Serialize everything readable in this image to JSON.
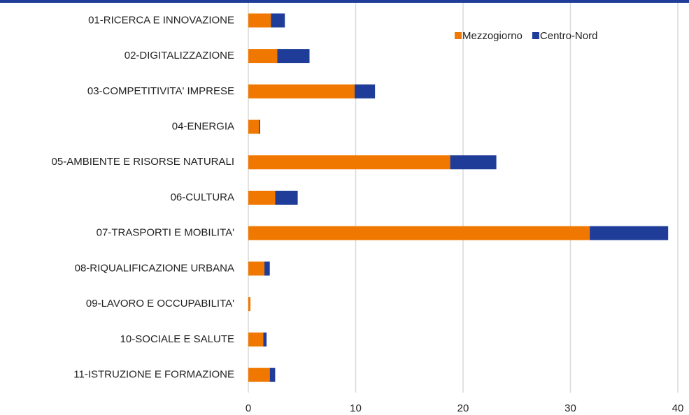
{
  "chart_data": {
    "type": "stacked_barh",
    "categories": [
      "01-RICERCA E INNOVAZIONE",
      "02-DIGITALIZZAZIONE",
      "03-COMPETITIVITA' IMPRESE",
      "04-ENERGIA",
      "05-AMBIENTE E RISORSE NATURALI",
      "06-CULTURA",
      "07-TRASPORTI E MOBILITA'",
      "08-RIQUALIFICAZIONE URBANA",
      "09-LAVORO E OCCUPABILITA'",
      "10-SOCIALE E SALUTE",
      "11-ISTRUZIONE E FORMAZIONE"
    ],
    "series": [
      {
        "name": "Mezzogiorno",
        "color": "#f07800",
        "values": [
          2.1,
          2.7,
          9.9,
          1.0,
          18.8,
          2.5,
          31.8,
          1.5,
          0.2,
          1.4,
          2.0
        ]
      },
      {
        "name": "Centro-Nord",
        "color": "#1f3c99",
        "values": [
          1.3,
          3.0,
          1.9,
          0.1,
          4.3,
          2.1,
          7.3,
          0.5,
          0,
          0.3,
          0.5
        ]
      }
    ],
    "xlim": [
      0,
      40
    ],
    "xticks": [
      0,
      10,
      20,
      30,
      40
    ],
    "grid": true,
    "legend": "top-right"
  }
}
